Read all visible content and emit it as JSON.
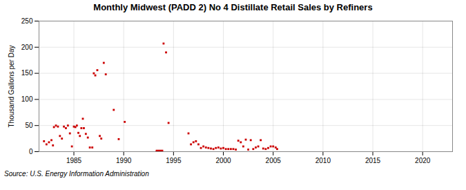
{
  "chart_data": {
    "type": "scatter",
    "title": "Monthly Midwest (PADD 2) No 4 Distillate Retail Sales by Refiners",
    "ylabel": "Thousand Gallons per Day",
    "source": "Source: U.S. Energy Information Administration",
    "color": "#cc0000",
    "marker": "square",
    "grid": true,
    "xlim": [
      1981.5,
      2023
    ],
    "ylim": [
      0,
      250
    ],
    "xticks": [
      1985,
      1990,
      1995,
      2000,
      2005,
      2010,
      2015,
      2020
    ],
    "yticks": [
      0,
      50,
      100,
      150,
      200,
      250
    ],
    "x": [
      1982.0,
      1982.25,
      1982.5,
      1982.75,
      1982.9,
      1983.0,
      1983.2,
      1983.4,
      1983.6,
      1983.8,
      1984.0,
      1984.2,
      1984.4,
      1984.6,
      1984.8,
      1985.0,
      1985.15,
      1985.3,
      1985.45,
      1985.6,
      1985.75,
      1985.9,
      1986.0,
      1986.2,
      1986.4,
      1986.6,
      1986.85,
      1987.0,
      1987.15,
      1987.35,
      1987.6,
      1987.75,
      1988.0,
      1988.2,
      1989.0,
      1989.5,
      1990.1,
      1993.3,
      1993.45,
      1993.6,
      1993.75,
      1993.85,
      1994.0,
      1994.25,
      1994.5,
      1996.5,
      1996.75,
      1997.0,
      1997.25,
      1997.5,
      1997.75,
      1998.0,
      1998.25,
      1998.5,
      1998.75,
      1999.0,
      1999.25,
      1999.5,
      1999.75,
      2000.0,
      2000.25,
      2000.5,
      2000.75,
      2001.0,
      2001.25,
      2001.5,
      2001.75,
      2002.0,
      2002.25,
      2002.5,
      2002.75,
      2003.0,
      2003.25,
      2003.5,
      2003.75,
      2004.0,
      2004.25,
      2004.5,
      2004.75,
      2005.0,
      2005.25,
      2005.4
    ],
    "values": [
      20,
      14,
      18,
      22,
      12,
      47,
      50,
      48,
      30,
      25,
      48,
      45,
      50,
      35,
      10,
      48,
      47,
      50,
      36,
      30,
      45,
      63,
      45,
      34,
      27,
      8,
      8,
      150,
      146,
      156,
      30,
      25,
      170,
      148,
      80,
      24,
      57,
      0,
      0,
      0,
      0,
      0,
      207,
      190,
      55,
      35,
      14,
      18,
      20,
      14,
      7,
      10,
      8,
      7,
      6,
      5,
      7,
      8,
      6,
      7,
      5,
      5,
      5,
      5,
      4,
      21,
      18,
      10,
      23,
      4,
      22,
      5,
      8,
      10,
      22,
      6,
      5,
      7,
      10,
      10,
      8,
      5
    ],
    "rect": {
      "x1": 1993.25,
      "x2": 1994.0,
      "y1": 0,
      "y2": 3
    }
  }
}
